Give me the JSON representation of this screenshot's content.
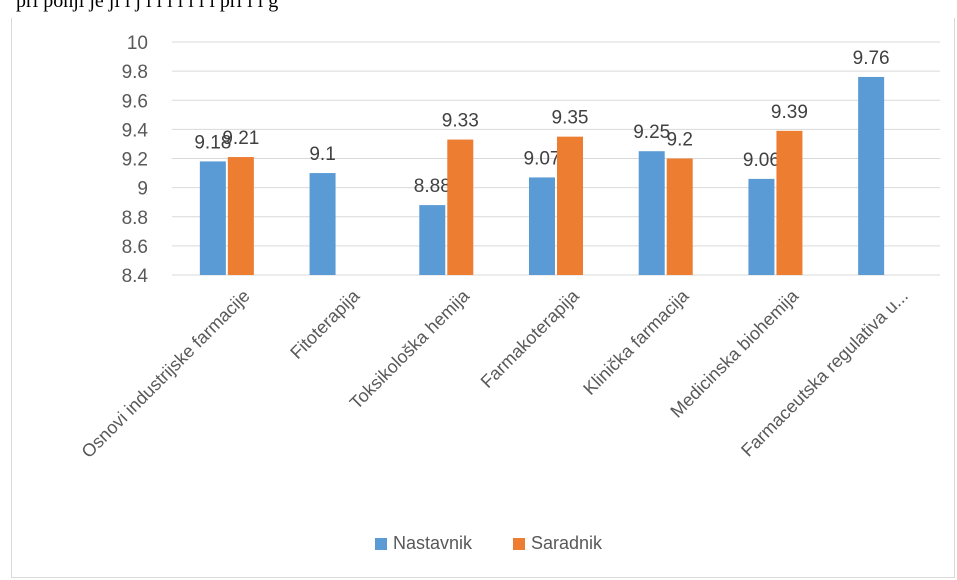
{
  "header": {
    "caption_fragment": "pri  ponji      je     ji                         l      j          i     i  l        i      l      i  i           pri  i     i       g "
  },
  "chart_data": {
    "type": "bar",
    "categories": [
      "Osnovi industrijske farmacije",
      "Fitoterapija",
      "Toksikološka hemija",
      "Farmakoterapija",
      "Klinička farmacija",
      "Medicinska biohemija",
      "Farmaceutska regulativa u..."
    ],
    "series": [
      {
        "name": "Nastavnik",
        "color": "#5b9bd5",
        "values": [
          9.18,
          9.1,
          8.88,
          9.07,
          9.25,
          9.06,
          9.76
        ]
      },
      {
        "name": "Saradnik",
        "color": "#ed7d31",
        "values": [
          9.21,
          null,
          9.33,
          9.35,
          9.2,
          9.39,
          null
        ]
      }
    ],
    "data_labels": [
      [
        "9.18",
        "9.1",
        "8.88",
        "9.07",
        "9.25",
        "9.06",
        "9.76"
      ],
      [
        "9.21",
        "",
        "9.33",
        "9.35",
        "9.2",
        "9.39",
        ""
      ]
    ],
    "yticks": [
      "8.4",
      "8.6",
      "8.8",
      "9",
      "9.2",
      "9.4",
      "9.6",
      "9.8",
      "10"
    ],
    "ylim": [
      8.4,
      10
    ],
    "grid": true,
    "legend": "bottom",
    "title": "",
    "xlabel": "",
    "ylabel": ""
  }
}
